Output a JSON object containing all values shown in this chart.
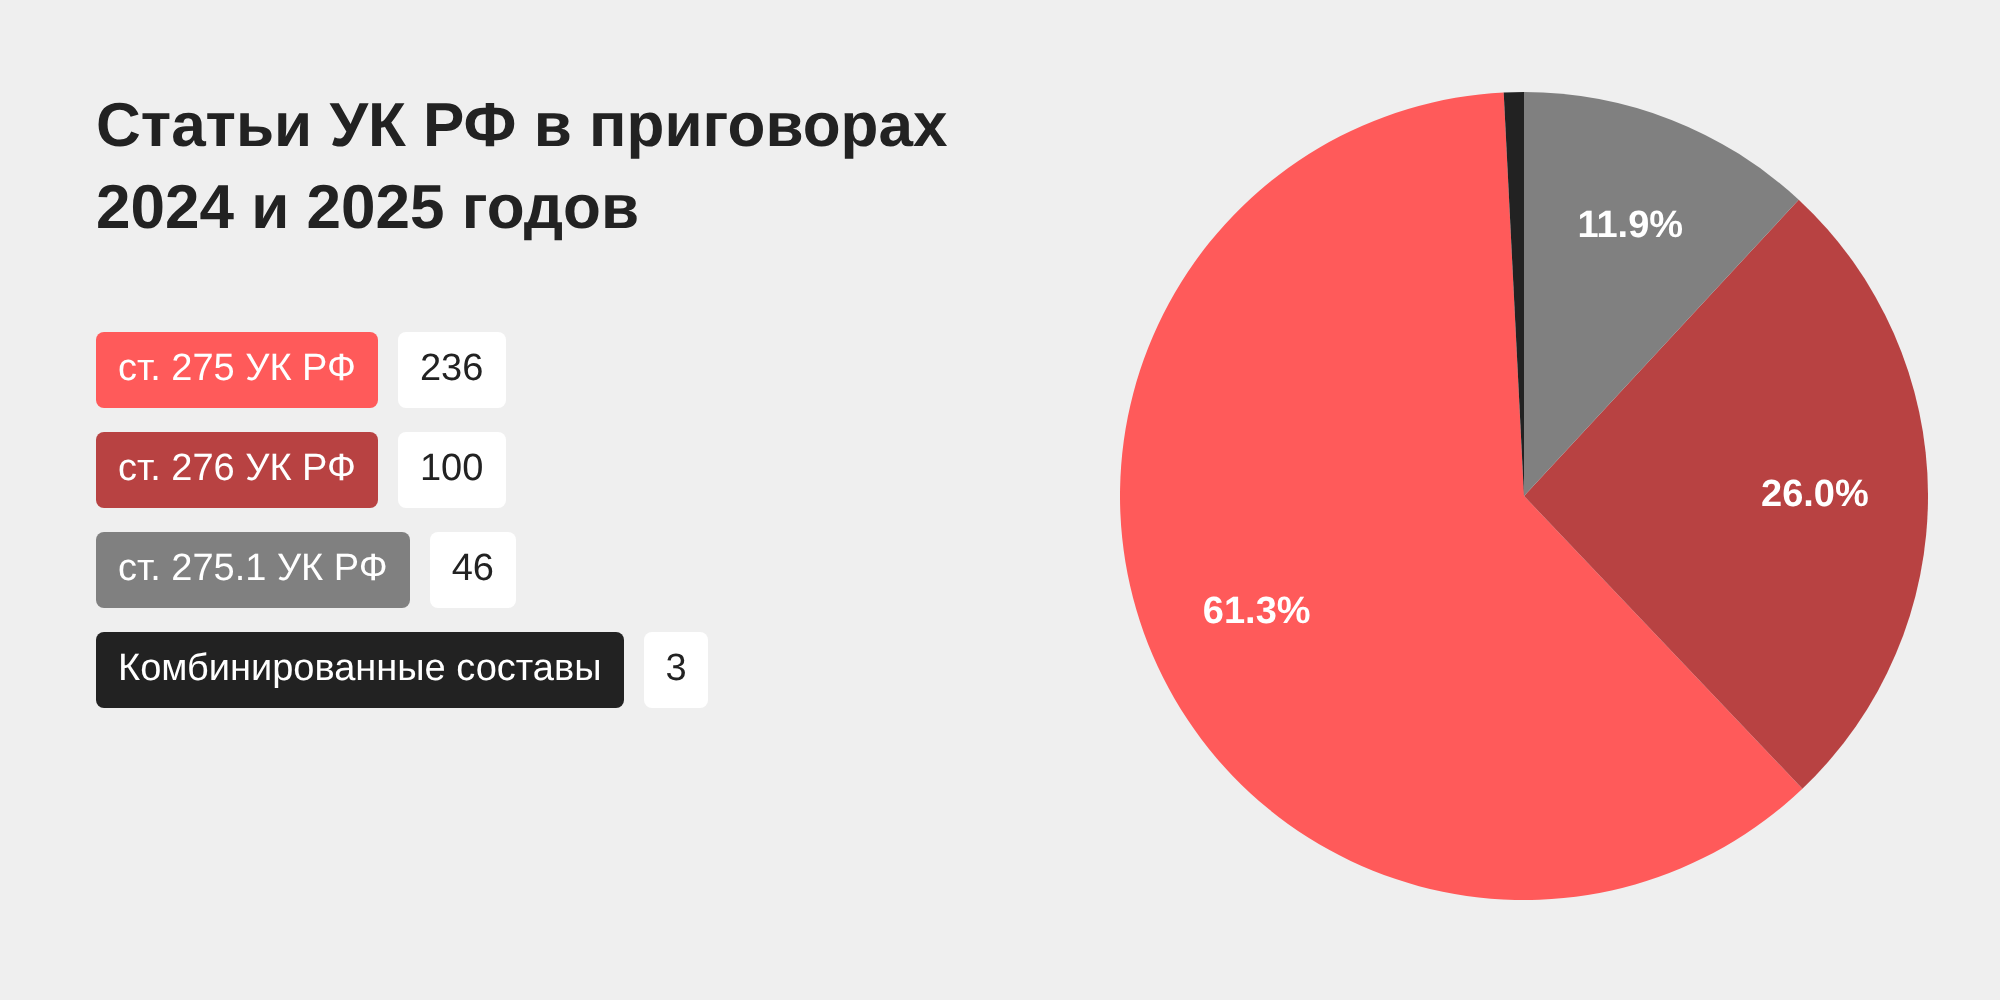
{
  "chart_data": {
    "type": "pie",
    "title": "Статьи УК РФ в приговорах 2024 и 2025 годов",
    "categories": [
      "ст. 275 УК РФ",
      "ст. 276 УК РФ",
      "ст. 275.1 УК РФ",
      "Комбинированные составы"
    ],
    "values": [
      61.3,
      26.0,
      11.9,
      0.8
    ],
    "annotations": [
      "236",
      "100",
      "46",
      "3"
    ],
    "colors": [
      "#ff5a5a",
      "#b84242",
      "#808080",
      "#222222"
    ],
    "value_labels": [
      "61.3%",
      "26.0%",
      "11.9%",
      null
    ],
    "legend": "left"
  }
}
